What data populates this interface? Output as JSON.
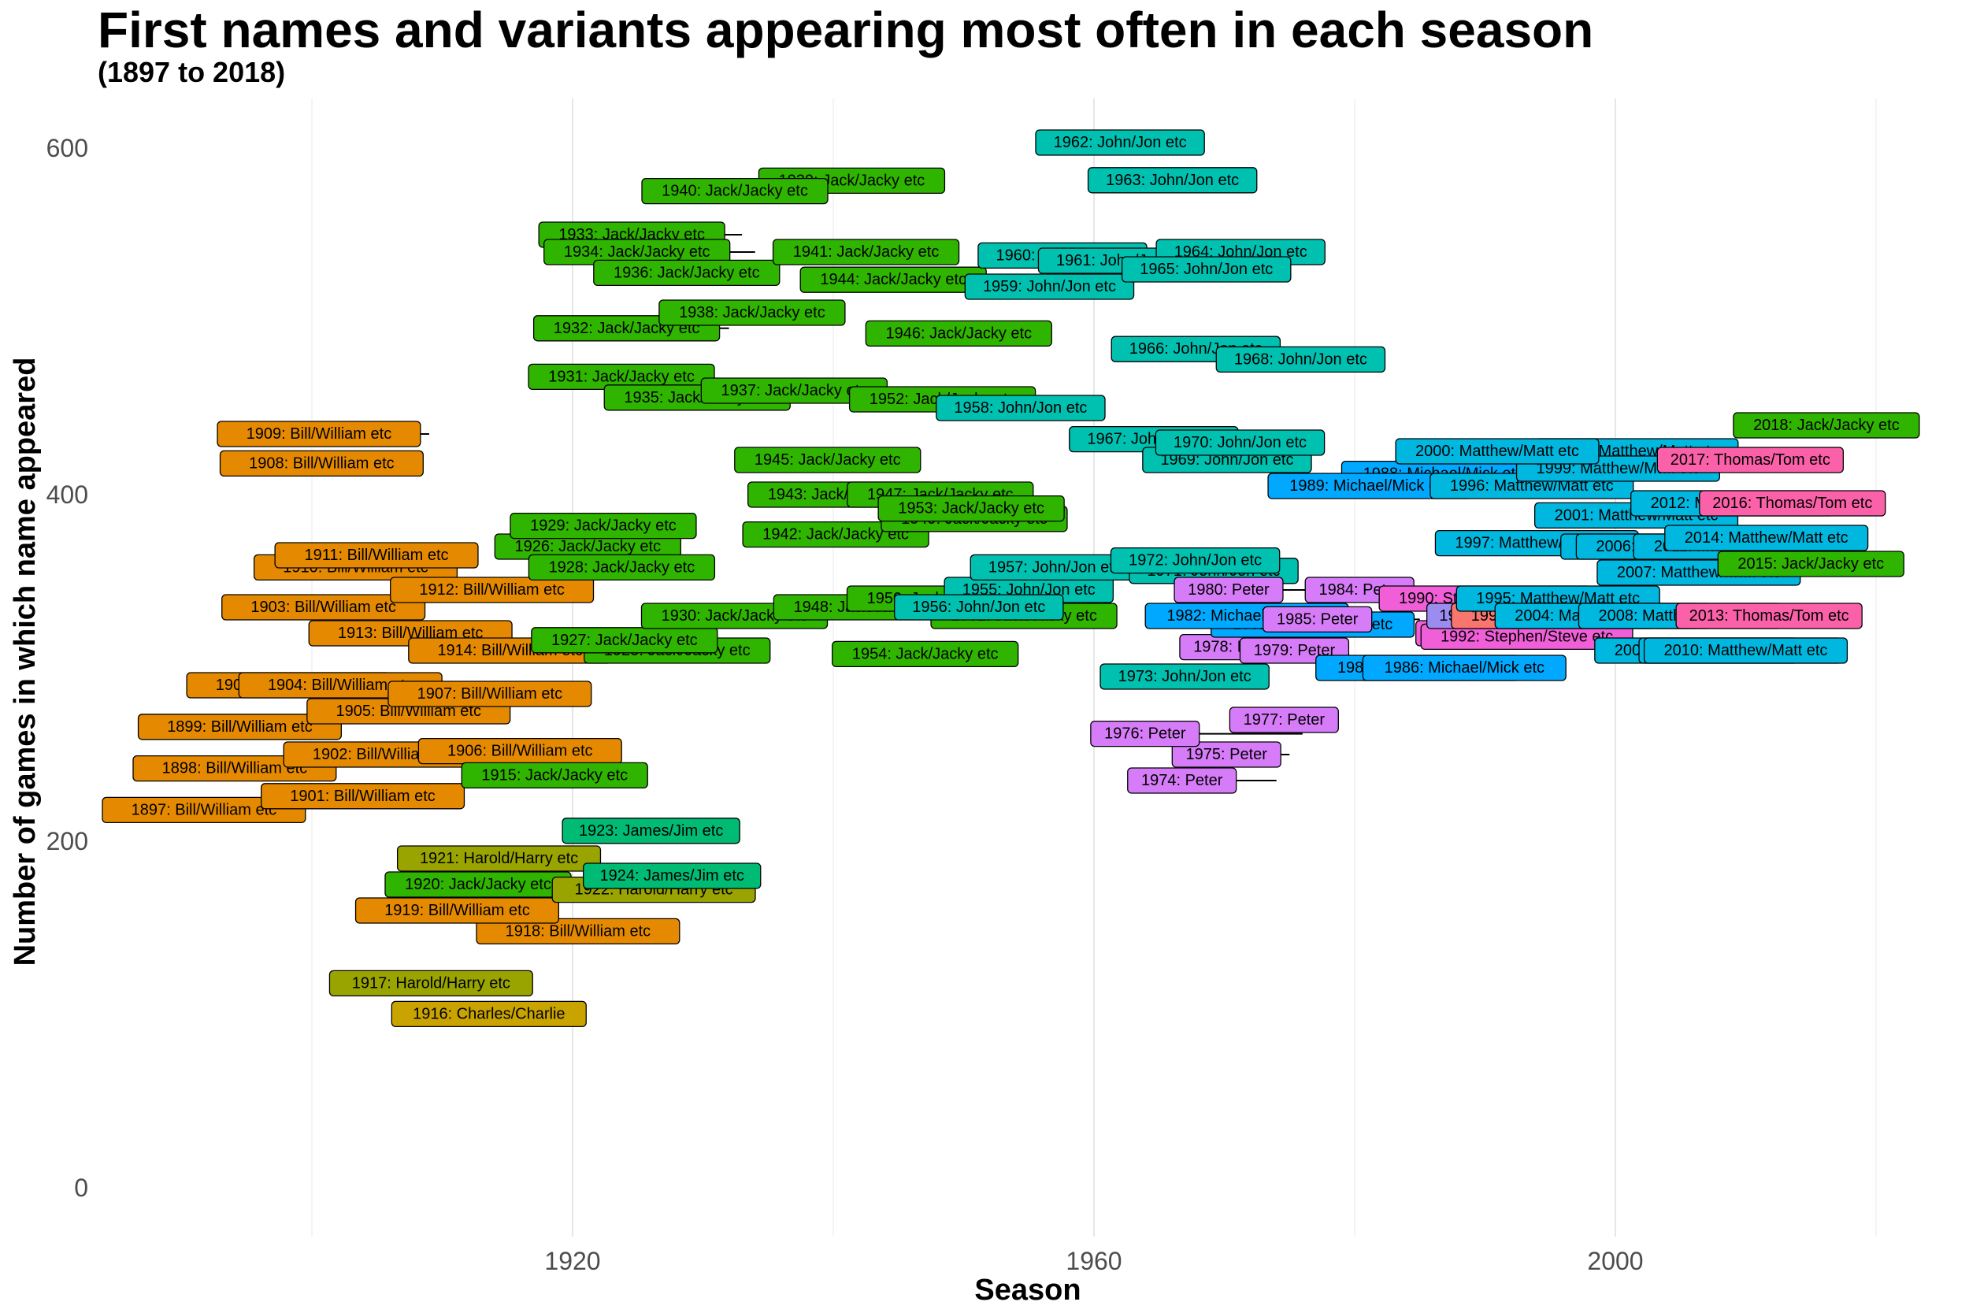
{
  "chart_data": {
    "type": "scatter",
    "title": "First names and variants appearing most often in each season",
    "subtitle": "(1897 to 2018)",
    "xlabel": "Season",
    "ylabel": "Number of games in which name appeared",
    "xlim": [
      1890,
      2025
    ],
    "ylim": [
      0,
      630
    ],
    "x_ticks": [
      1920,
      1960,
      2000
    ],
    "y_ticks": [
      0,
      200,
      400,
      600
    ],
    "grid": "vertical major and minor lines",
    "legend": "none",
    "name_colors": {
      "Bill/William etc": "#e58a00",
      "Charles/Charlie": "#c9a400",
      "Harold/Harry etc": "#9aa400",
      "Jack/Jacky etc": "#2fb400",
      "James/Jim etc": "#00bb74",
      "John/Jon etc": "#00c0b0",
      "Matthew/Matt etc": "#00b7e0",
      "Michael/Mick etc": "#00a9ff",
      "Paul": "#9c8cf0",
      "Peter": "#d67cf8",
      "Stephen/Steve etc": "#f05ed8",
      "Thomas/Tom etc": "#fb61a8",
      "Anthony/Tony etc": "#f8766d"
    },
    "points": [
      {
        "season": 1897,
        "name": "Bill/William etc",
        "games": 218
      },
      {
        "season": 1898,
        "name": "Bill/William etc",
        "games": 242
      },
      {
        "season": 1899,
        "name": "Bill/William etc",
        "games": 266
      },
      {
        "season": 1900,
        "name": "Bill/William etc",
        "games": 290
      },
      {
        "season": 1901,
        "name": "Bill/William etc",
        "games": 226
      },
      {
        "season": 1902,
        "name": "Bill/William etc",
        "games": 250
      },
      {
        "season": 1903,
        "name": "Bill/William etc",
        "games": 335
      },
      {
        "season": 1904,
        "name": "Bill/William etc",
        "games": 290
      },
      {
        "season": 1905,
        "name": "Bill/William etc",
        "games": 275
      },
      {
        "season": 1906,
        "name": "Bill/William etc",
        "games": 252
      },
      {
        "season": 1907,
        "name": "Bill/William etc",
        "games": 285
      },
      {
        "season": 1908,
        "name": "Bill/William etc",
        "games": 418
      },
      {
        "season": 1909,
        "name": "Bill/William etc",
        "games": 435
      },
      {
        "season": 1910,
        "name": "Bill/William etc",
        "games": 358
      },
      {
        "season": 1911,
        "name": "Bill/William etc",
        "games": 365
      },
      {
        "season": 1912,
        "name": "Bill/William etc",
        "games": 345
      },
      {
        "season": 1913,
        "name": "Bill/William etc",
        "games": 320
      },
      {
        "season": 1914,
        "name": "Bill/William etc",
        "games": 310
      },
      {
        "season": 1915,
        "name": "Jack/Jacky etc",
        "games": 238
      },
      {
        "season": 1916,
        "name": "Charles/Charlie",
        "games": 73
      },
      {
        "season": 1917,
        "name": "Harold/Harry etc",
        "games": 118
      },
      {
        "season": 1918,
        "name": "Bill/William etc",
        "games": 148
      },
      {
        "season": 1919,
        "name": "Bill/William etc",
        "games": 160
      },
      {
        "season": 1920,
        "name": "Jack/Jacky etc",
        "games": 175
      },
      {
        "season": 1921,
        "name": "Harold/Harry etc",
        "games": 190
      },
      {
        "season": 1922,
        "name": "Harold/Harry etc",
        "games": 172
      },
      {
        "season": 1923,
        "name": "James/Jim etc",
        "games": 206
      },
      {
        "season": 1924,
        "name": "James/Jim etc",
        "games": 180
      },
      {
        "season": 1925,
        "name": "Jack/Jacky etc",
        "games": 310
      },
      {
        "season": 1926,
        "name": "Jack/Jacky etc",
        "games": 370
      },
      {
        "season": 1927,
        "name": "Jack/Jacky etc",
        "games": 316
      },
      {
        "season": 1928,
        "name": "Jack/Jacky etc",
        "games": 358
      },
      {
        "season": 1929,
        "name": "Jack/Jacky etc",
        "games": 382
      },
      {
        "season": 1930,
        "name": "Jack/Jacky etc",
        "games": 330
      },
      {
        "season": 1931,
        "name": "Jack/Jacky etc",
        "games": 468
      },
      {
        "season": 1932,
        "name": "Jack/Jacky etc",
        "games": 496
      },
      {
        "season": 1933,
        "name": "Jack/Jacky etc",
        "games": 550
      },
      {
        "season": 1934,
        "name": "Jack/Jacky etc",
        "games": 540
      },
      {
        "season": 1935,
        "name": "Jack/Jacky etc",
        "games": 456
      },
      {
        "season": 1936,
        "name": "Jack/Jacky etc",
        "games": 528
      },
      {
        "season": 1937,
        "name": "Jack/Jacky etc",
        "games": 460
      },
      {
        "season": 1938,
        "name": "Jack/Jacky etc",
        "games": 505
      },
      {
        "season": 1939,
        "name": "Jack/Jacky etc",
        "games": 588
      },
      {
        "season": 1940,
        "name": "Jack/Jacky etc",
        "games": 582
      },
      {
        "season": 1941,
        "name": "Jack/Jacky etc",
        "games": 540
      },
      {
        "season": 1942,
        "name": "Jack/Jacky etc",
        "games": 377
      },
      {
        "season": 1943,
        "name": "Jack/Jacky etc",
        "games": 400
      },
      {
        "season": 1944,
        "name": "Jack/Jacky etc",
        "games": 524
      },
      {
        "season": 1945,
        "name": "Jack/Jacky etc",
        "games": 420
      },
      {
        "season": 1946,
        "name": "Jack/Jacky etc",
        "games": 493
      },
      {
        "season": 1947,
        "name": "Jack/Jacky etc",
        "games": 400
      },
      {
        "season": 1948,
        "name": "Jack/Jacky etc",
        "games": 335
      },
      {
        "season": 1949,
        "name": "Jack/Jacky etc",
        "games": 386
      },
      {
        "season": 1950,
        "name": "Jack/Jacky etc",
        "games": 340
      },
      {
        "season": 1951,
        "name": "Jack/Jacky etc",
        "games": 330
      },
      {
        "season": 1952,
        "name": "Jack/Jacky etc",
        "games": 455
      },
      {
        "season": 1953,
        "name": "Jack/Jacky etc",
        "games": 392
      },
      {
        "season": 1954,
        "name": "Jack/Jacky etc",
        "games": 308
      },
      {
        "season": 1955,
        "name": "John/Jon etc",
        "games": 345
      },
      {
        "season": 1956,
        "name": "John/Jon etc",
        "games": 335
      },
      {
        "season": 1957,
        "name": "John/Jon etc",
        "games": 358
      },
      {
        "season": 1958,
        "name": "John/Jon etc",
        "games": 450
      },
      {
        "season": 1959,
        "name": "John/Jon etc",
        "games": 520
      },
      {
        "season": 1960,
        "name": "John/Jon etc",
        "games": 538
      },
      {
        "season": 1961,
        "name": "John/Jon etc",
        "games": 535
      },
      {
        "season": 1962,
        "name": "John/Jon etc",
        "games": 610
      },
      {
        "season": 1963,
        "name": "John/Jon etc",
        "games": 586
      },
      {
        "season": 1964,
        "name": "John/Jon etc",
        "games": 540
      },
      {
        "season": 1965,
        "name": "John/Jon etc",
        "games": 530
      },
      {
        "season": 1966,
        "name": "John/Jon etc",
        "games": 484
      },
      {
        "season": 1967,
        "name": "John/Jon etc",
        "games": 432
      },
      {
        "season": 1968,
        "name": "John/Jon etc",
        "games": 478
      },
      {
        "season": 1969,
        "name": "John/Jon etc",
        "games": 420
      },
      {
        "season": 1970,
        "name": "John/Jon etc",
        "games": 430
      },
      {
        "season": 1971,
        "name": "John/Jon etc",
        "games": 356
      },
      {
        "season": 1972,
        "name": "John/Jon etc",
        "games": 362
      },
      {
        "season": 1973,
        "name": "John/Jon etc",
        "games": 295
      },
      {
        "season": 1974,
        "name": "Peter",
        "games": 235
      },
      {
        "season": 1975,
        "name": "Peter",
        "games": 250
      },
      {
        "season": 1976,
        "name": "Peter",
        "games": 262
      },
      {
        "season": 1977,
        "name": "Peter",
        "games": 270
      },
      {
        "season": 1978,
        "name": "Peter",
        "games": 312
      },
      {
        "season": 1979,
        "name": "Peter",
        "games": 310
      },
      {
        "season": 1980,
        "name": "Peter",
        "games": 345
      },
      {
        "season": 1981,
        "name": "Michael/Mick etc",
        "games": 325
      },
      {
        "season": 1982,
        "name": "Michael/Mick etc",
        "games": 330
      },
      {
        "season": 1983,
        "name": "Michael/Mick etc",
        "games": 300
      },
      {
        "season": 1984,
        "name": "Peter",
        "games": 345
      },
      {
        "season": 1985,
        "name": "Peter",
        "games": 328
      },
      {
        "season": 1986,
        "name": "Michael/Mick etc",
        "games": 300
      },
      {
        "season": 1987,
        "name": "Michael/Mick etc",
        "games": 410
      },
      {
        "season": 1988,
        "name": "Michael/Mick etc",
        "games": 412
      },
      {
        "season": 1989,
        "name": "Michael/Mick etc",
        "games": 405
      },
      {
        "season": 1990,
        "name": "Stephen/Steve etc",
        "games": 340
      },
      {
        "season": 1991,
        "name": "Stephen/Steve etc",
        "games": 320
      },
      {
        "season": 1992,
        "name": "Stephen/Steve etc",
        "games": 318
      },
      {
        "season": 1993,
        "name": "Paul",
        "games": 330
      },
      {
        "season": 1994,
        "name": "Anthony/Tony etc",
        "games": 330
      },
      {
        "season": 1995,
        "name": "Matthew/Matt etc",
        "games": 340
      },
      {
        "season": 1996,
        "name": "Matthew/Matt etc",
        "games": 405
      },
      {
        "season": 1997,
        "name": "Matthew/Matt etc",
        "games": 372
      },
      {
        "season": 1998,
        "name": "Matthew/Matt etc",
        "games": 425
      },
      {
        "season": 1999,
        "name": "Matthew/Matt etc",
        "games": 415
      },
      {
        "season": 2000,
        "name": "Matthew/Matt etc",
        "games": 425
      },
      {
        "season": 2001,
        "name": "Matthew/Matt etc",
        "games": 388
      },
      {
        "season": 2002,
        "name": "Matthew/Matt etc",
        "games": 330
      },
      {
        "season": 2003,
        "name": "Matthew/Matt etc",
        "games": 370
      },
      {
        "season": 2004,
        "name": "Matthew/Matt etc",
        "games": 330
      },
      {
        "season": 2005,
        "name": "Matthew/Matt etc",
        "games": 310
      },
      {
        "season": 2006,
        "name": "Matthew/Matt etc",
        "games": 370
      },
      {
        "season": 2007,
        "name": "Matthew/Matt etc",
        "games": 355
      },
      {
        "season": 2008,
        "name": "Matthew/Matt etc",
        "games": 330
      },
      {
        "season": 2009,
        "name": "Matthew/Matt etc",
        "games": 310
      },
      {
        "season": 2010,
        "name": "Matthew/Matt etc",
        "games": 310
      },
      {
        "season": 2011,
        "name": "Matthew/Matt etc",
        "games": 370
      },
      {
        "season": 2012,
        "name": "Matthew/Matt etc",
        "games": 395
      },
      {
        "season": 2013,
        "name": "Thomas/Tom etc",
        "games": 330
      },
      {
        "season": 2014,
        "name": "Matthew/Matt etc",
        "games": 375
      },
      {
        "season": 2015,
        "name": "Jack/Jacky etc",
        "games": 360
      },
      {
        "season": 2016,
        "name": "Thomas/Tom etc",
        "games": 395
      },
      {
        "season": 2017,
        "name": "Thomas/Tom etc",
        "games": 420
      },
      {
        "season": 2018,
        "name": "Jack/Jacky etc",
        "games": 440
      }
    ]
  }
}
